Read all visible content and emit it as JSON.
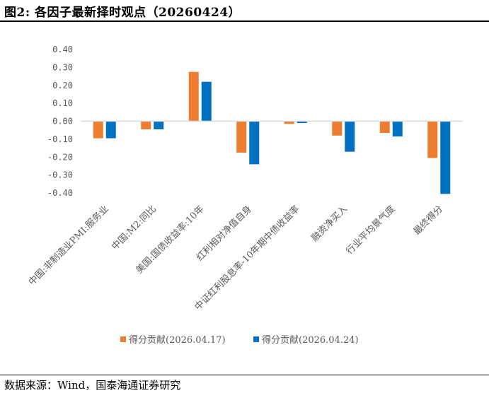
{
  "header": {
    "title": "图2: 各因子最新择时观点（20260424）"
  },
  "footer": {
    "source": "数据来源：Wind，国泰海通证券研究"
  },
  "colors": {
    "series1": "#ED7D31",
    "series2": "#0070C0",
    "axis": "#D9D9D9",
    "text": "#595959"
  },
  "chart_data": {
    "type": "bar",
    "title": "各因子最新择时观点（20260424）",
    "xlabel": "",
    "ylabel": "",
    "ylim": [
      -0.4,
      0.4
    ],
    "yticks": [
      0.4,
      0.3,
      0.2,
      0.1,
      0.0,
      -0.1,
      -0.2,
      -0.3,
      -0.4
    ],
    "ytick_labels": [
      "0.40",
      "0.30",
      "0.20",
      "0.10",
      "0.00",
      "-0.10",
      "-0.20",
      "-0.30",
      "-0.40"
    ],
    "grid": false,
    "legend_position": "bottom",
    "categories": [
      "中国:非制造业PMI:服务业",
      "中国:M2:同比",
      "美国:国债收益率:10年",
      "红利相对净值自身",
      "中证红利股息率-10年期中债收益率",
      "融资净买入",
      "行业平均景气度",
      "最终得分"
    ],
    "series": [
      {
        "name": "得分贡献(2026.04.17)",
        "values": [
          -0.095,
          -0.045,
          0.275,
          -0.175,
          -0.015,
          -0.08,
          -0.065,
          -0.205
        ]
      },
      {
        "name": "得分贡献(2026.04.24)",
        "values": [
          -0.095,
          -0.045,
          0.22,
          -0.24,
          -0.01,
          -0.17,
          -0.085,
          -0.405
        ]
      }
    ]
  }
}
